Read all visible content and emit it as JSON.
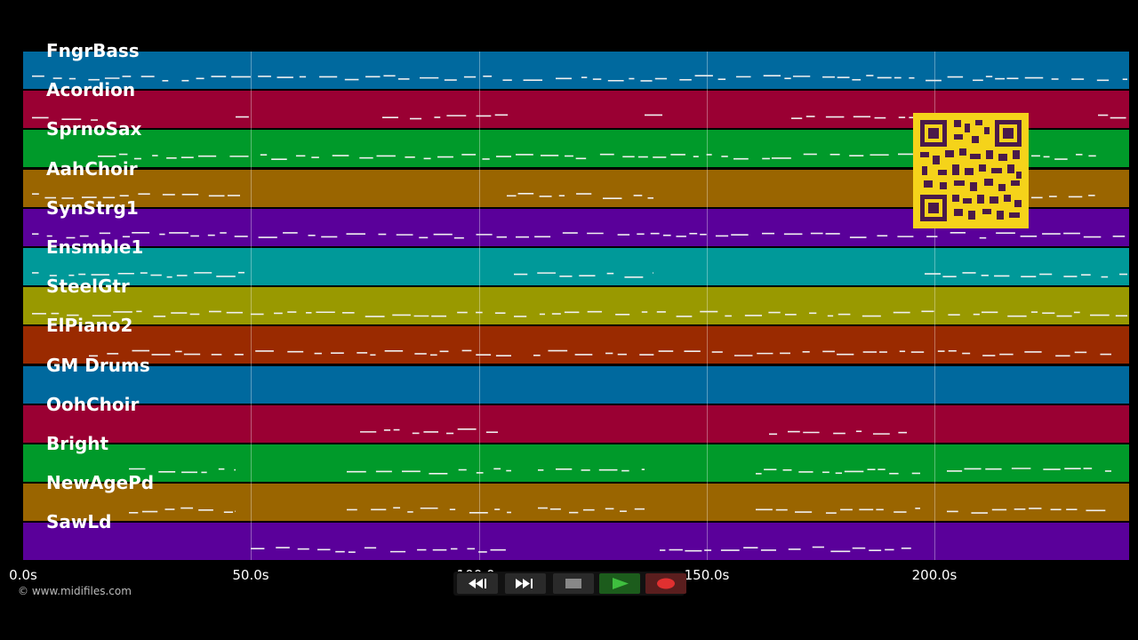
{
  "player": {
    "tracks": [
      {
        "name": "FngrBass",
        "color": "#00699e"
      },
      {
        "name": "Acordion",
        "color": "#9a0033"
      },
      {
        "name": "SprnoSax",
        "color": "#009a2a"
      },
      {
        "name": "AahChoir",
        "color": "#9a6500"
      },
      {
        "name": "SynStrg1",
        "color": "#5a009a"
      },
      {
        "name": "Ensmble1",
        "color": "#009999"
      },
      {
        "name": "SteelGtr",
        "color": "#999900"
      },
      {
        "name": "ElPiano2",
        "color": "#9a2a00"
      },
      {
        "name": "GM Drums",
        "color": "#00699e"
      },
      {
        "name": "OohChoir",
        "color": "#9a0033"
      },
      {
        "name": "Bright",
        "color": "#009a2a"
      },
      {
        "name": "NewAgePd",
        "color": "#9a6500"
      },
      {
        "name": "SawLd",
        "color": "#5a009a"
      }
    ],
    "timeline": {
      "ticks": [
        "0.0s",
        "50.0s",
        "100.0s",
        "150.0s",
        "200.0s"
      ]
    },
    "copyright": "© www.midifiles.com",
    "transport": {
      "buttons": [
        {
          "name": "rewind",
          "icon": "rewind-icon"
        },
        {
          "name": "fast-forward",
          "icon": "fast-forward-icon"
        },
        {
          "name": "stop",
          "icon": "stop-icon"
        },
        {
          "name": "play",
          "icon": "play-icon"
        },
        {
          "name": "record",
          "icon": "record-icon"
        }
      ]
    },
    "qr_code": {
      "icon": "qr-code",
      "color": "#f5d31a"
    }
  }
}
